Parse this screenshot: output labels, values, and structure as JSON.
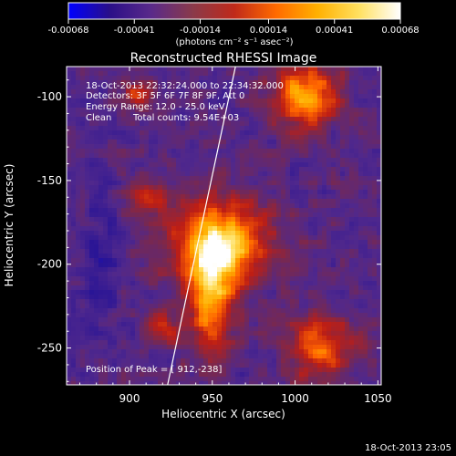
{
  "colorbar": {
    "tick_labels": [
      "-0.00068",
      "-0.00041",
      "-0.00014",
      "0.00014",
      "0.00041",
      "0.00068"
    ],
    "tick_values": [
      -0.00068,
      -0.00041,
      -0.00014,
      0.00014,
      0.00041,
      0.00068
    ],
    "range": [
      -0.00068,
      0.00068
    ],
    "unit_label": "(photons cm⁻² s⁻¹ asec⁻²)",
    "colors": [
      "#0000ff",
      "#2a0f88",
      "#5a2a8a",
      "#8a3a4a",
      "#c02a1a",
      "#ff6a00",
      "#ffb000",
      "#ffe060",
      "#ffffff"
    ]
  },
  "annotations": {
    "time_range": "18-Oct-2013 22:32:24.000  to  22:34:32.000",
    "detectors": "Detectors: 3F 5F 6F 7F 8F 9F, Att 0",
    "energy": "Energy Range: 12.0 - 25.0 keV",
    "clean": "Clean",
    "counts": "Total counts: 9.54E+03",
    "peak": "Position of Peak = [ 912,-238]"
  },
  "footer": {
    "timestamp": "18-Oct-2013 23:05"
  },
  "chart_data": {
    "type": "heatmap",
    "title": "Reconstructed RHESSI Image",
    "xlabel": "Heliocentric X (arcsec)",
    "ylabel": "Heliocentric Y (arcsec)",
    "xlim": [
      862,
      1052
    ],
    "ylim": [
      -272,
      -82
    ],
    "x_ticks": [
      900,
      950,
      1000,
      1050
    ],
    "y_ticks": [
      -100,
      -150,
      -200,
      -250
    ],
    "grid": false,
    "limb_line": [
      {
        "x": 923,
        "y": -272
      },
      {
        "x": 964,
        "y": -82
      }
    ],
    "peak": {
      "x": 912,
      "y": -238
    }
  }
}
